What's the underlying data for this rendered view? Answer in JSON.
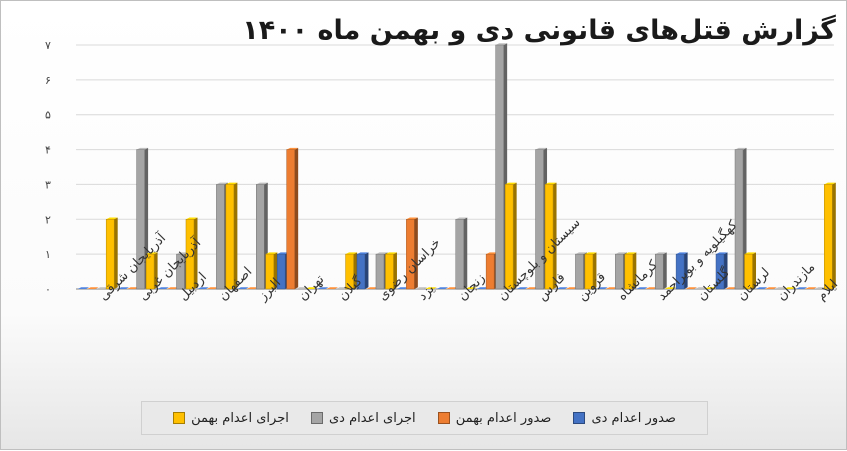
{
  "chart_data": {
    "type": "bar",
    "title": "گزارش قتل‌های قانونی دی و بهمن ماه ۱۴۰۰",
    "categories": [
      "آذربایجان شرقی",
      "آذربایجان غربی",
      "اردبیل",
      "اصفهان",
      "البرز",
      "تهران",
      "گیلان",
      "خراسان رضوی",
      "یزد",
      "زنجان",
      "سیستان و بلوچستان",
      "فارس",
      "قزوین",
      "کرمانشاه",
      "کهگیلویه و بویراحمد",
      "گلستان",
      "لرستان",
      "مازندران",
      "ایلام"
    ],
    "series": [
      {
        "name": "صدور اعدام دی",
        "color": "#4472C4",
        "values": [
          0,
          0,
          0,
          0,
          0,
          1,
          0,
          1,
          0,
          0,
          0,
          0,
          0,
          0,
          0,
          1,
          1,
          0,
          0
        ]
      },
      {
        "name": "صدور اعدام بهمن",
        "color": "#ED7D31",
        "values": [
          0,
          0,
          0,
          0,
          0,
          4,
          0,
          0,
          2,
          0,
          1,
          0,
          0,
          0,
          0,
          0,
          0,
          0,
          0
        ]
      },
      {
        "name": "اجرای اعدام دی",
        "color": "#A5A5A5",
        "values": [
          0,
          4,
          1,
          3,
          3,
          0,
          0,
          1,
          0,
          2,
          7,
          4,
          1,
          1,
          1,
          0,
          4,
          0,
          0
        ]
      },
      {
        "name": "اجرای اعدام بهمن",
        "color": "#FFC000",
        "values": [
          2,
          1,
          2,
          3,
          1,
          0,
          1,
          1,
          0,
          0,
          3,
          3,
          1,
          1,
          0,
          0,
          1,
          0,
          3
        ]
      }
    ],
    "yticks": [
      "۰",
      "۱",
      "۲",
      "۳",
      "۴",
      "۵",
      "۶",
      "۷"
    ],
    "ylim": [
      0,
      7
    ],
    "grid": true,
    "legend_position": "bottom"
  }
}
